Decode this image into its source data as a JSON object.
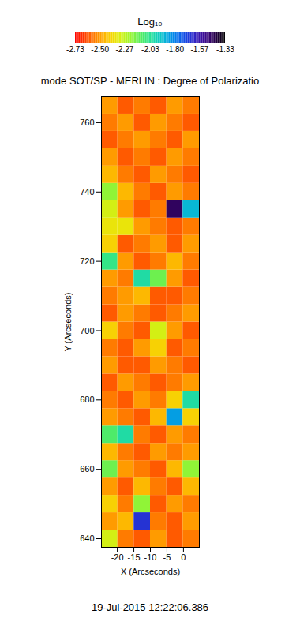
{
  "chart_data": {
    "type": "heatmap",
    "title": "mode SOT/SP - MERLIN : Degree of Polarizatio",
    "x_label": "X (Arcseconds)",
    "y_label": "Y (Arcseconds)",
    "caption": "19-Jul-2015 12:22:06.386",
    "xlim": [
      -24.8,
      4.8
    ],
    "xticks": [
      -20,
      -15,
      -10,
      -5,
      0
    ],
    "ylim": [
      637.5,
      767.5
    ],
    "yticks": [
      640,
      660,
      680,
      700,
      720,
      740,
      760
    ],
    "x": [
      -22.33,
      -17.4,
      -12.47,
      -7.53,
      -2.6,
      2.33
    ],
    "y": [
      640,
      645,
      650,
      655,
      660,
      665,
      670,
      675,
      680,
      685,
      690,
      695,
      700,
      705,
      710,
      715,
      720,
      725,
      730,
      735,
      740,
      745,
      750,
      755,
      760,
      765
    ],
    "values": [
      [
        -2.3,
        -2.55,
        -2.6,
        -2.5,
        -2.6,
        -2.55
      ],
      [
        -2.5,
        -2.45,
        -1.65,
        -2.55,
        -2.6,
        -2.5
      ],
      [
        -2.4,
        -2.55,
        -2.2,
        -2.6,
        -2.5,
        -2.55
      ],
      [
        -2.5,
        -2.6,
        -2.45,
        -2.55,
        -2.6,
        -2.45
      ],
      [
        -2.15,
        -2.5,
        -2.55,
        -2.6,
        -2.45,
        -2.2
      ],
      [
        -2.45,
        -2.55,
        -2.6,
        -2.5,
        -2.55,
        -2.5
      ],
      [
        -2.1,
        -2.0,
        -2.55,
        -2.6,
        -2.5,
        -2.55
      ],
      [
        -2.5,
        -2.55,
        -2.6,
        -2.45,
        -1.85,
        -2.4
      ],
      [
        -2.55,
        -2.6,
        -2.5,
        -2.55,
        -2.4,
        -2.0
      ],
      [
        -2.6,
        -2.5,
        -2.55,
        -2.6,
        -2.55,
        -2.5
      ],
      [
        -2.5,
        -2.6,
        -2.6,
        -2.5,
        -2.55,
        -2.6
      ],
      [
        -2.55,
        -2.6,
        -2.5,
        -2.4,
        -2.6,
        -2.55
      ],
      [
        -2.4,
        -2.55,
        -2.6,
        -2.3,
        -2.5,
        -2.6
      ],
      [
        -2.6,
        -2.5,
        -2.55,
        -2.6,
        -2.55,
        -2.5
      ],
      [
        -2.55,
        -2.5,
        -2.45,
        -2.6,
        -2.6,
        -2.55
      ],
      [
        -2.5,
        -2.55,
        -2.0,
        -2.15,
        -2.5,
        -2.6
      ],
      [
        -2.05,
        -2.5,
        -2.6,
        -2.55,
        -2.45,
        -2.55
      ],
      [
        -2.4,
        -2.6,
        -2.55,
        -2.5,
        -2.6,
        -2.5
      ],
      [
        -2.35,
        -2.35,
        -2.5,
        -2.55,
        -2.6,
        -2.55
      ],
      [
        -2.3,
        -2.5,
        -2.6,
        -2.55,
        -1.45,
        -1.9
      ],
      [
        -2.2,
        -2.45,
        -2.55,
        -2.6,
        -2.5,
        -2.55
      ],
      [
        -2.45,
        -2.55,
        -2.6,
        -2.5,
        -2.55,
        -2.6
      ],
      [
        -2.5,
        -2.6,
        -2.55,
        -2.6,
        -2.5,
        -2.55
      ],
      [
        -2.6,
        -2.55,
        -2.5,
        -2.55,
        -2.6,
        -2.5
      ],
      [
        -2.55,
        -2.5,
        -2.6,
        -2.5,
        -2.55,
        -2.6
      ],
      [
        -2.5,
        -2.6,
        -2.55,
        -2.6,
        -2.5,
        -2.55
      ]
    ],
    "colorbar": {
      "label": "Log₁₀",
      "lim": [
        -2.73,
        -1.33
      ],
      "ticks": [
        -2.73,
        {
          "value": -2.5,
          "label": "-2.50"
        },
        -2.27,
        -2.03,
        {
          "value": -1.8,
          "label": "-1.80"
        },
        -1.57,
        -1.33
      ]
    }
  }
}
